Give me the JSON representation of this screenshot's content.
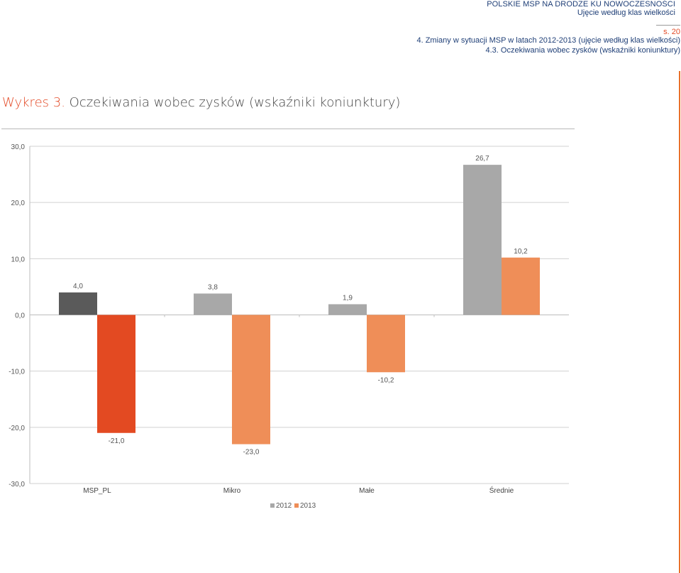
{
  "header": {
    "title": "POLSKIE MSP NA DRODZE KU NOWOCZESNOŚCI",
    "subtitle": "Ujęcie według klas wielkości",
    "page": "s. 20",
    "section_main": "4. Zmiany w sytuacji MSP w latach 2012-2013 (ujęcie według klas wielkości)",
    "section_sub": "4.3. Oczekiwania wobec zysków (wskaźniki koniunktury)"
  },
  "figure": {
    "label": "Wykres 3.",
    "caption": "Oczekiwania wobec zysków (wskaźniki koniunktury)"
  },
  "colors": {
    "accent": "#e34a26",
    "header_text": "#1f3f77",
    "side_rule": "#e8702a"
  },
  "chart_data": {
    "type": "bar",
    "categories": [
      "MSP_PL",
      "Mikro",
      "Małe",
      "Średnie"
    ],
    "series": [
      {
        "name": "2012",
        "values": [
          4.0,
          3.8,
          1.9,
          26.7
        ],
        "colors": [
          "#5a5a5a",
          "#a8a8a8",
          "#a8a8a8",
          "#a8a8a8"
        ],
        "legend_color": "#a8a8a8"
      },
      {
        "name": "2013",
        "values": [
          -21.0,
          -23.0,
          -10.2,
          10.2
        ],
        "colors": [
          "#e34a22",
          "#ef8e58",
          "#ef8e58",
          "#ef8e58"
        ],
        "legend_color": "#ef8e58"
      }
    ],
    "data_labels": [
      [
        "4,0",
        "3,8",
        "1,9",
        "26,7"
      ],
      [
        "-21,0",
        "-23,0",
        "-10,2",
        "10,2"
      ]
    ],
    "yticks": [
      30,
      20,
      10,
      0,
      -10,
      -20,
      -30
    ],
    "ytick_labels": [
      "30,0",
      "20,0",
      "10,0",
      "0,0",
      "-10,0",
      "-20,0",
      "-30,0"
    ],
    "ylim": [
      -30,
      30
    ],
    "grid": true,
    "legend_position": "bottom-center"
  }
}
